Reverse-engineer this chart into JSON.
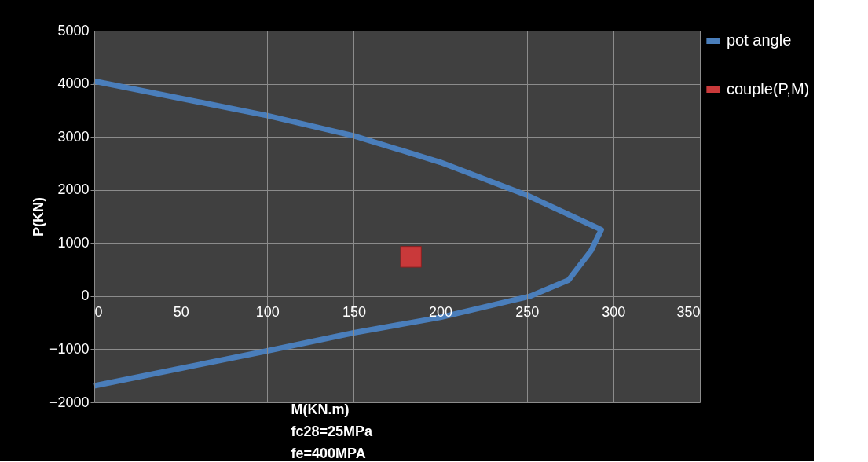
{
  "chart_data": {
    "type": "line",
    "xlabel": "M(KN.m)",
    "ylabel": "P(KN)",
    "annotations": [
      "fc28=25MPa",
      "fe=400MPA"
    ],
    "xlim": [
      0,
      350
    ],
    "xticks": [
      0,
      50,
      100,
      150,
      200,
      250,
      300,
      350
    ],
    "ylim": [
      -2000,
      5000
    ],
    "yticks": [
      -2000,
      -1000,
      0,
      1000,
      2000,
      3000,
      4000,
      5000
    ],
    "grid": true,
    "legend": "top right",
    "series": [
      {
        "name": "pot angle",
        "color": "#4a7ebb",
        "x": [
          0,
          100,
          150,
          200,
          250,
          293,
          287,
          274,
          252,
          200,
          150,
          100,
          50,
          0
        ],
        "values": [
          4050,
          3400,
          3020,
          2520,
          1900,
          1250,
          850,
          300,
          0,
          -400,
          -690,
          -1030,
          -1360,
          -1690
        ]
      },
      {
        "name": "couple(P,M)",
        "type": "scatter",
        "color": "#c9393a",
        "marker": "square",
        "x": [
          183
        ],
        "values": [
          740
        ]
      }
    ]
  }
}
